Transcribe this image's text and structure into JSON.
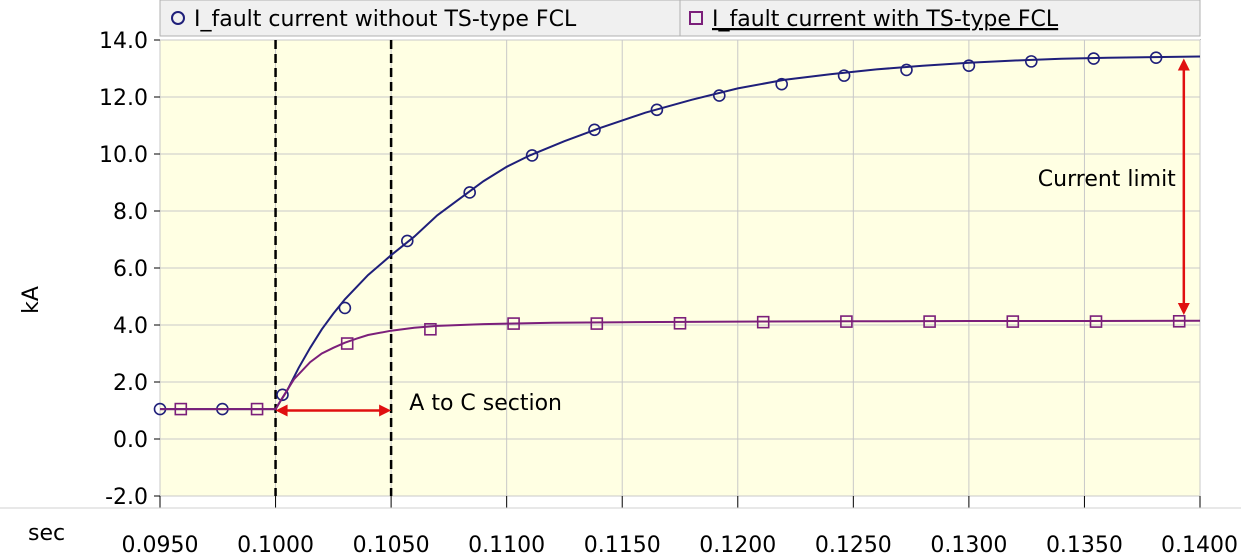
{
  "chart_data": {
    "type": "line",
    "title": "",
    "xlabel": "sec",
    "ylabel": "kA",
    "xlim": [
      0.095,
      0.14
    ],
    "ylim": [
      -2.0,
      14.0
    ],
    "x_ticks": [
      0.095,
      0.1,
      0.105,
      0.11,
      0.115,
      0.12,
      0.125,
      0.13,
      0.135,
      0.14
    ],
    "x_tick_labels": [
      "0.0950",
      "0.1000",
      "0.1050",
      "0.1100",
      "0.1150",
      "0.1200",
      "0.1250",
      "0.1300",
      "0.1350",
      "0.1400"
    ],
    "y_ticks": [
      -2,
      0,
      2,
      4,
      6,
      8,
      10,
      12,
      14
    ],
    "y_tick_labels": [
      "-2.0",
      "0.0",
      "2.0",
      "4.0",
      "6.0",
      "8.0",
      "10.0",
      "12.0",
      "14.0"
    ],
    "grid": true,
    "legend_position": "top",
    "series": [
      {
        "name": "I_fault current without TS-type FCL",
        "color": "#1f1f7a",
        "marker": "circle",
        "x": [
          0.095,
          0.0962,
          0.0975,
          0.0988,
          0.1,
          0.10015,
          0.1005,
          0.101,
          0.1015,
          0.102,
          0.1025,
          0.103,
          0.104,
          0.105,
          0.106,
          0.107,
          0.108,
          0.109,
          0.11,
          0.111,
          0.1125,
          0.114,
          0.116,
          0.118,
          0.12,
          0.122,
          0.124,
          0.126,
          0.128,
          0.13,
          0.132,
          0.134,
          0.136,
          0.138,
          0.14
        ],
        "y": [
          1.05,
          1.05,
          1.05,
          1.05,
          1.05,
          1.25,
          1.7,
          2.5,
          3.2,
          3.85,
          4.4,
          4.9,
          5.75,
          6.45,
          7.1,
          7.85,
          8.45,
          9.05,
          9.55,
          9.95,
          10.45,
          10.9,
          11.45,
          11.9,
          12.3,
          12.6,
          12.8,
          12.97,
          13.1,
          13.2,
          13.28,
          13.34,
          13.38,
          13.4,
          13.42
        ],
        "marker_x": [
          0.095,
          0.0977,
          0.1003,
          0.103,
          0.1057,
          0.1084,
          0.1111,
          0.1138,
          0.1165,
          0.1192,
          0.1219,
          0.1246,
          0.1273,
          0.13,
          0.1327,
          0.1354,
          0.1381
        ],
        "marker_y": [
          1.05,
          1.05,
          1.55,
          4.6,
          6.95,
          8.65,
          9.95,
          10.85,
          11.55,
          12.05,
          12.45,
          12.75,
          12.95,
          13.1,
          13.25,
          13.35,
          13.38
        ]
      },
      {
        "name": "I_fault current with TS-type FCL",
        "color": "#7b1f7a",
        "marker": "square",
        "x": [
          0.095,
          0.0962,
          0.0975,
          0.0988,
          0.1,
          0.1003,
          0.1008,
          0.1015,
          0.102,
          0.1025,
          0.103,
          0.1035,
          0.104,
          0.105,
          0.106,
          0.107,
          0.108,
          0.109,
          0.11,
          0.112,
          0.115,
          0.12,
          0.125,
          0.13,
          0.135,
          0.14
        ],
        "y": [
          1.05,
          1.05,
          1.05,
          1.05,
          1.05,
          1.45,
          2.1,
          2.7,
          3.0,
          3.2,
          3.38,
          3.52,
          3.65,
          3.8,
          3.9,
          3.97,
          4.0,
          4.03,
          4.05,
          4.08,
          4.1,
          4.12,
          4.13,
          4.14,
          4.14,
          4.15
        ],
        "marker_x": [
          0.0959,
          0.0992,
          0.1031,
          0.1067,
          0.1103,
          0.1139,
          0.1175,
          0.1211,
          0.1247,
          0.1283,
          0.1319,
          0.1355,
          0.1391
        ],
        "marker_y": [
          1.05,
          1.05,
          3.35,
          3.85,
          4.05,
          4.05,
          4.06,
          4.1,
          4.12,
          4.12,
          4.12,
          4.12,
          4.13
        ]
      }
    ],
    "vlines": [
      0.1,
      0.105
    ],
    "annotations": [
      {
        "text": "A to C section",
        "x": 0.1057,
        "y": 0.95,
        "arrow_x": [
          0.1,
          0.105
        ],
        "arrow_y": 1.0,
        "arrow_color": "#e01010"
      },
      {
        "text": "Current limit",
        "x": 0.1393,
        "y": 8.8,
        "arrow_x": 0.1393,
        "arrow_y": [
          13.35,
          4.35
        ],
        "arrow_color": "#e01010"
      }
    ],
    "colors": {
      "plot_bg": "#ffffe3",
      "grid": "#c8c8c8",
      "axis": "#000000"
    }
  }
}
